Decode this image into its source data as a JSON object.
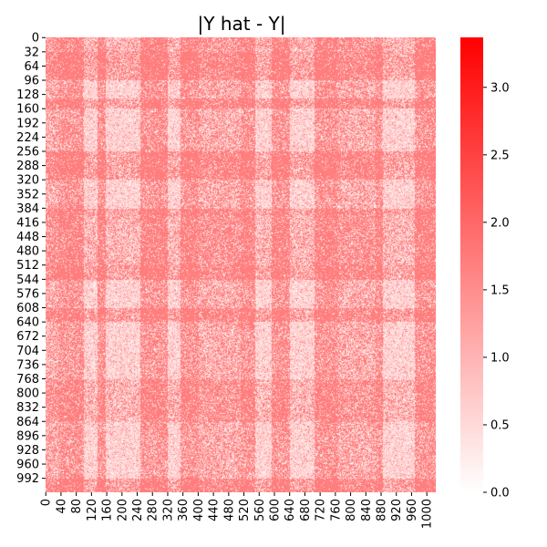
{
  "chart_data": {
    "type": "heatmap",
    "title": "|Y hat - Y|",
    "xlabel": "",
    "ylabel": "",
    "matrix_size": 1024,
    "x_tick_values": [
      0,
      40,
      80,
      120,
      160,
      200,
      240,
      280,
      320,
      360,
      400,
      440,
      480,
      520,
      560,
      600,
      640,
      680,
      720,
      760,
      800,
      840,
      880,
      920,
      960,
      1000
    ],
    "y_tick_values": [
      0,
      32,
      64,
      96,
      128,
      160,
      192,
      224,
      256,
      288,
      320,
      352,
      384,
      416,
      448,
      480,
      512,
      544,
      576,
      608,
      640,
      672,
      704,
      736,
      768,
      800,
      832,
      864,
      896,
      928,
      960,
      992
    ],
    "x_tick_labels": [
      "0",
      "40",
      "80",
      "120",
      "160",
      "200",
      "240",
      "280",
      "320",
      "360",
      "400",
      "440",
      "480",
      "520",
      "560",
      "600",
      "640",
      "680",
      "720",
      "760",
      "800",
      "840",
      "880",
      "920",
      "960",
      "1000"
    ],
    "y_tick_labels": [
      "0",
      "32",
      "64",
      "96",
      "128",
      "160",
      "192",
      "224",
      "256",
      "288",
      "320",
      "352",
      "384",
      "416",
      "448",
      "480",
      "512",
      "544",
      "576",
      "608",
      "640",
      "672",
      "704",
      "736",
      "768",
      "800",
      "832",
      "864",
      "896",
      "928",
      "960",
      "992"
    ],
    "colorbar": {
      "min": 0.0,
      "max": 3.37,
      "ticks": [
        0.0,
        0.5,
        1.0,
        1.5,
        2.0,
        2.5,
        3.0
      ],
      "tick_labels": [
        "0.0",
        "0.5",
        "1.0",
        "1.5",
        "2.0",
        "2.5",
        "3.0"
      ],
      "colormap": [
        "#ffffff",
        "#ff0000"
      ]
    },
    "dominant_value": 1.7,
    "light_column_bands": [
      [
        100,
        136
      ],
      [
        156,
        248
      ],
      [
        320,
        352
      ],
      [
        548,
        592
      ],
      [
        640,
        704
      ],
      [
        884,
        968
      ]
    ],
    "light_row_bands": [
      [
        96,
        136
      ],
      [
        160,
        256
      ],
      [
        320,
        384
      ],
      [
        544,
        608
      ],
      [
        640,
        768
      ],
      [
        864,
        992
      ]
    ],
    "block_sized_bands": [
      [
        0,
        32
      ],
      [
        400,
        512
      ],
      [
        768,
        864
      ]
    ],
    "diagonal_value": 0.6
  }
}
